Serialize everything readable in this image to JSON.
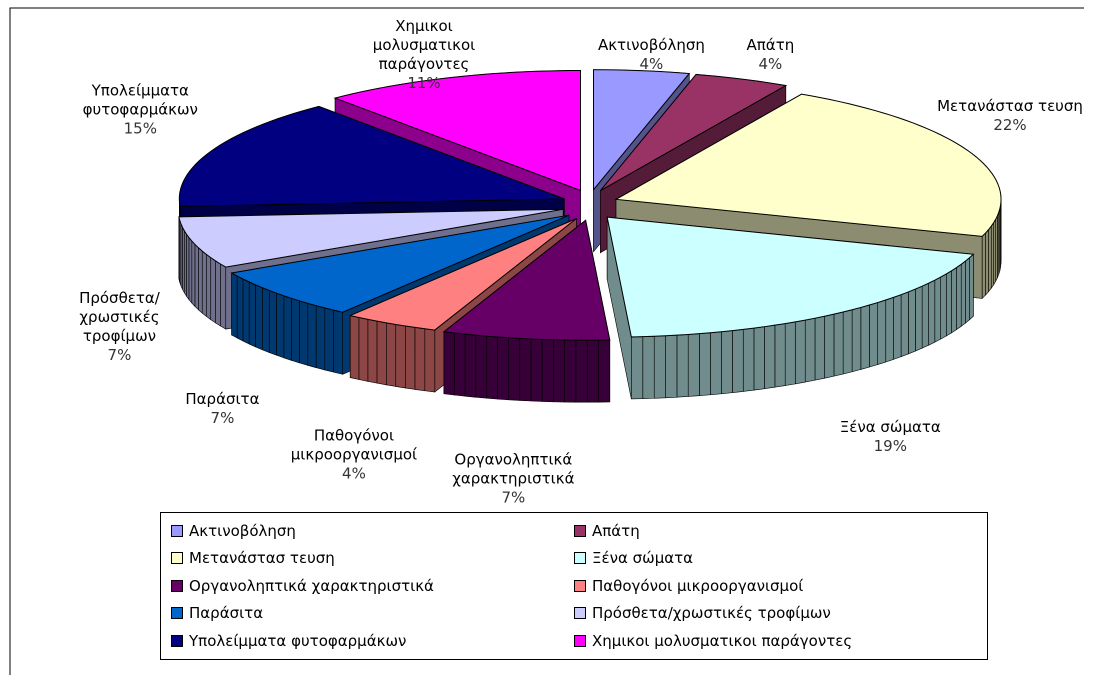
{
  "chart_data": {
    "type": "pie3d",
    "categories": [
      "Ακτινοβόληση",
      "Απάτη",
      "Μετανάστασ τευση",
      "Ξένα σώματα",
      "Οργανοληπτικά χαρακτηριστικά",
      "Παθογόνοι μικροοργανισμοί",
      "Παράσιτα",
      "Πρόσθετα/χρωστικές τροφίμων",
      "Υπολείμματα φυτοφαρμάκων",
      "Χημικοι μολυσματικοι παράγοντες"
    ],
    "values": [
      4,
      4,
      22,
      19,
      7,
      4,
      7,
      7,
      15,
      11
    ],
    "value_labels": [
      "4%",
      "4%",
      "22%",
      "19%",
      "7%",
      "4%",
      "7%",
      "7%",
      "15%",
      "11%"
    ],
    "colors": [
      "#9999ff",
      "#993366",
      "#ffffcc",
      "#ccffff",
      "#660066",
      "#ff8080",
      "#0066cc",
      "#ccccff",
      "#000080",
      "#ff00ff"
    ],
    "legend": "bottom"
  }
}
